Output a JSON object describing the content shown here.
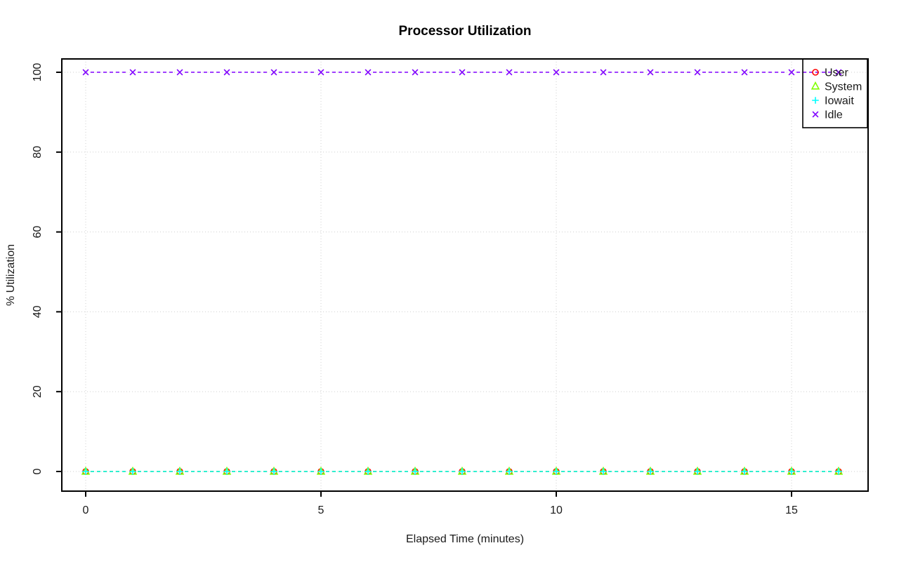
{
  "page": {
    "background": "#ffffff"
  },
  "colors": {
    "axis": "#000000",
    "grid": "#cfcfcf",
    "text": "#1a1a1a"
  },
  "chart_data": {
    "type": "line",
    "title": "Processor Utilization",
    "xlabel": "Elapsed Time (minutes)",
    "ylabel": "% Utilization",
    "xlim": [
      0,
      16
    ],
    "ylim": [
      0,
      100
    ],
    "grid": true,
    "grid_style": "dotted",
    "line_style": "dashed",
    "x_ticks": [
      0,
      5,
      10,
      15
    ],
    "y_ticks": [
      0,
      20,
      40,
      60,
      80,
      100
    ],
    "x": [
      0,
      1,
      2,
      3,
      4,
      5,
      6,
      7,
      8,
      9,
      10,
      11,
      12,
      13,
      14,
      15,
      16
    ],
    "series": [
      {
        "name": "User",
        "marker": "circle",
        "color": "#FF0000",
        "values": [
          0,
          0,
          0,
          0,
          0,
          0,
          0,
          0,
          0,
          0,
          0,
          0,
          0,
          0,
          0,
          0,
          0
        ]
      },
      {
        "name": "System",
        "marker": "triangle",
        "color": "#80FF00",
        "values": [
          0,
          0,
          0,
          0,
          0,
          0,
          0,
          0,
          0,
          0,
          0,
          0,
          0,
          0,
          0,
          0,
          0
        ]
      },
      {
        "name": "Iowait",
        "marker": "plus",
        "color": "#00FFFF",
        "values": [
          0,
          0,
          0,
          0,
          0,
          0,
          0,
          0,
          0,
          0,
          0,
          0,
          0,
          0,
          0,
          0,
          0
        ]
      },
      {
        "name": "Idle",
        "marker": "x",
        "color": "#8000FF",
        "values": [
          100,
          100,
          100,
          100,
          100,
          100,
          100,
          100,
          100,
          100,
          100,
          100,
          100,
          100,
          100,
          100,
          100
        ]
      }
    ],
    "legend": {
      "position": "topright",
      "labels": [
        "User",
        "System",
        "Iowait",
        "Idle"
      ]
    }
  }
}
